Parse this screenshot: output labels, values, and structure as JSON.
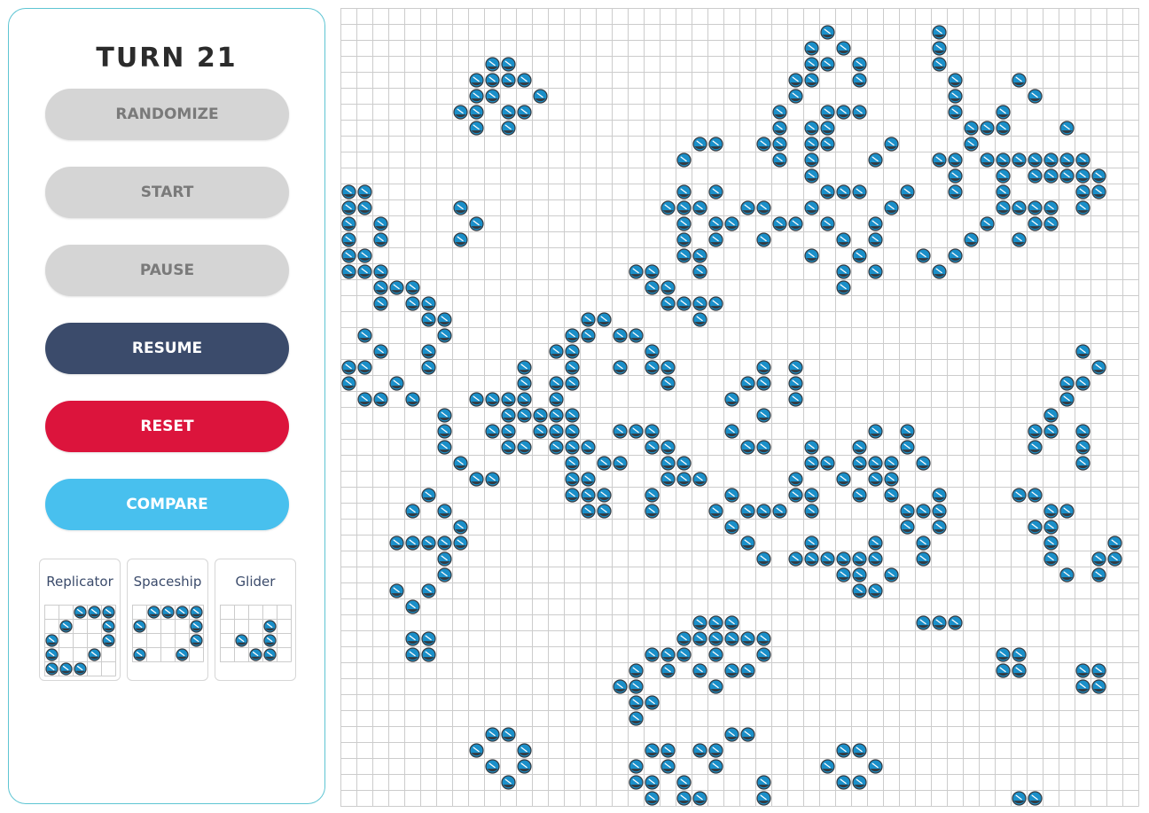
{
  "turn_label": "TURN 21",
  "buttons": {
    "randomize": "RANDOMIZE",
    "start": "START",
    "pause": "PAUSE",
    "resume": "RESUME",
    "reset": "RESET",
    "compare": "COMPARE"
  },
  "colors": {
    "cell_fill": "#1a8fc9",
    "cell_dark": "#34393f",
    "grid_line": "#cccccc",
    "resume": "#3b4b6b",
    "reset": "#dc143c",
    "compare": "#48c0ee",
    "disabled": "#d5d5d5"
  },
  "board": {
    "cols": 50,
    "rows": 50,
    "live_cells": [
      [
        1,
        30
      ],
      [
        1,
        37
      ],
      [
        2,
        29
      ],
      [
        2,
        31
      ],
      [
        2,
        37
      ],
      [
        3,
        9
      ],
      [
        3,
        10
      ],
      [
        3,
        29
      ],
      [
        3,
        30
      ],
      [
        3,
        32
      ],
      [
        3,
        37
      ],
      [
        4,
        8
      ],
      [
        4,
        9
      ],
      [
        4,
        10
      ],
      [
        4,
        11
      ],
      [
        4,
        28
      ],
      [
        4,
        29
      ],
      [
        4,
        32
      ],
      [
        4,
        38
      ],
      [
        4,
        42
      ],
      [
        5,
        8
      ],
      [
        5,
        9
      ],
      [
        5,
        12
      ],
      [
        5,
        28
      ],
      [
        5,
        38
      ],
      [
        5,
        43
      ],
      [
        6,
        7
      ],
      [
        6,
        8
      ],
      [
        6,
        10
      ],
      [
        6,
        11
      ],
      [
        6,
        27
      ],
      [
        6,
        30
      ],
      [
        6,
        31
      ],
      [
        6,
        32
      ],
      [
        6,
        38
      ],
      [
        6,
        41
      ],
      [
        7,
        8
      ],
      [
        7,
        10
      ],
      [
        7,
        27
      ],
      [
        7,
        29
      ],
      [
        7,
        30
      ],
      [
        7,
        39
      ],
      [
        7,
        40
      ],
      [
        7,
        41
      ],
      [
        7,
        45
      ],
      [
        8,
        22
      ],
      [
        8,
        23
      ],
      [
        8,
        26
      ],
      [
        8,
        27
      ],
      [
        8,
        29
      ],
      [
        8,
        30
      ],
      [
        8,
        34
      ],
      [
        8,
        39
      ],
      [
        9,
        21
      ],
      [
        9,
        27
      ],
      [
        9,
        29
      ],
      [
        9,
        33
      ],
      [
        9,
        37
      ],
      [
        9,
        38
      ],
      [
        9,
        40
      ],
      [
        9,
        41
      ],
      [
        9,
        42
      ],
      [
        9,
        43
      ],
      [
        9,
        44
      ],
      [
        9,
        45
      ],
      [
        9,
        46
      ],
      [
        10,
        29
      ],
      [
        10,
        38
      ],
      [
        10,
        41
      ],
      [
        10,
        43
      ],
      [
        10,
        44
      ],
      [
        10,
        45
      ],
      [
        10,
        46
      ],
      [
        10,
        47
      ],
      [
        11,
        0
      ],
      [
        11,
        1
      ],
      [
        11,
        21
      ],
      [
        11,
        23
      ],
      [
        11,
        30
      ],
      [
        11,
        31
      ],
      [
        11,
        32
      ],
      [
        11,
        35
      ],
      [
        11,
        38
      ],
      [
        11,
        41
      ],
      [
        11,
        46
      ],
      [
        11,
        47
      ],
      [
        12,
        0
      ],
      [
        12,
        1
      ],
      [
        12,
        7
      ],
      [
        12,
        20
      ],
      [
        12,
        21
      ],
      [
        12,
        22
      ],
      [
        12,
        25
      ],
      [
        12,
        26
      ],
      [
        12,
        29
      ],
      [
        12,
        34
      ],
      [
        12,
        41
      ],
      [
        12,
        42
      ],
      [
        12,
        43
      ],
      [
        12,
        44
      ],
      [
        12,
        46
      ],
      [
        13,
        0
      ],
      [
        13,
        2
      ],
      [
        13,
        8
      ],
      [
        13,
        21
      ],
      [
        13,
        23
      ],
      [
        13,
        24
      ],
      [
        13,
        27
      ],
      [
        13,
        28
      ],
      [
        13,
        30
      ],
      [
        13,
        33
      ],
      [
        13,
        40
      ],
      [
        13,
        43
      ],
      [
        13,
        44
      ],
      [
        14,
        0
      ],
      [
        14,
        2
      ],
      [
        14,
        7
      ],
      [
        14,
        21
      ],
      [
        14,
        23
      ],
      [
        14,
        26
      ],
      [
        14,
        31
      ],
      [
        14,
        33
      ],
      [
        14,
        39
      ],
      [
        14,
        42
      ],
      [
        15,
        0
      ],
      [
        15,
        1
      ],
      [
        15,
        21
      ],
      [
        15,
        22
      ],
      [
        15,
        29
      ],
      [
        15,
        32
      ],
      [
        15,
        36
      ],
      [
        15,
        38
      ],
      [
        16,
        0
      ],
      [
        16,
        1
      ],
      [
        16,
        2
      ],
      [
        16,
        18
      ],
      [
        16,
        19
      ],
      [
        16,
        22
      ],
      [
        16,
        31
      ],
      [
        16,
        33
      ],
      [
        16,
        37
      ],
      [
        17,
        2
      ],
      [
        17,
        3
      ],
      [
        17,
        4
      ],
      [
        17,
        19
      ],
      [
        17,
        20
      ],
      [
        17,
        31
      ],
      [
        18,
        2
      ],
      [
        18,
        4
      ],
      [
        18,
        5
      ],
      [
        18,
        20
      ],
      [
        18,
        21
      ],
      [
        18,
        22
      ],
      [
        18,
        23
      ],
      [
        19,
        5
      ],
      [
        19,
        6
      ],
      [
        19,
        15
      ],
      [
        19,
        16
      ],
      [
        19,
        22
      ],
      [
        20,
        1
      ],
      [
        20,
        6
      ],
      [
        20,
        14
      ],
      [
        20,
        15
      ],
      [
        20,
        17
      ],
      [
        20,
        18
      ],
      [
        21,
        2
      ],
      [
        21,
        5
      ],
      [
        21,
        13
      ],
      [
        21,
        14
      ],
      [
        21,
        19
      ],
      [
        21,
        46
      ],
      [
        22,
        0
      ],
      [
        22,
        1
      ],
      [
        22,
        5
      ],
      [
        22,
        11
      ],
      [
        22,
        14
      ],
      [
        22,
        17
      ],
      [
        22,
        19
      ],
      [
        22,
        20
      ],
      [
        22,
        26
      ],
      [
        22,
        28
      ],
      [
        22,
        47
      ],
      [
        23,
        0
      ],
      [
        23,
        3
      ],
      [
        23,
        11
      ],
      [
        23,
        13
      ],
      [
        23,
        14
      ],
      [
        23,
        20
      ],
      [
        23,
        25
      ],
      [
        23,
        26
      ],
      [
        23,
        28
      ],
      [
        23,
        45
      ],
      [
        23,
        46
      ],
      [
        24,
        1
      ],
      [
        24,
        2
      ],
      [
        24,
        4
      ],
      [
        24,
        8
      ],
      [
        24,
        9
      ],
      [
        24,
        10
      ],
      [
        24,
        11
      ],
      [
        24,
        13
      ],
      [
        24,
        24
      ],
      [
        24,
        28
      ],
      [
        24,
        45
      ],
      [
        25,
        6
      ],
      [
        25,
        10
      ],
      [
        25,
        11
      ],
      [
        25,
        12
      ],
      [
        25,
        13
      ],
      [
        25,
        14
      ],
      [
        25,
        26
      ],
      [
        25,
        44
      ],
      [
        26,
        6
      ],
      [
        26,
        9
      ],
      [
        26,
        10
      ],
      [
        26,
        12
      ],
      [
        26,
        13
      ],
      [
        26,
        14
      ],
      [
        26,
        17
      ],
      [
        26,
        18
      ],
      [
        26,
        19
      ],
      [
        26,
        24
      ],
      [
        26,
        33
      ],
      [
        26,
        35
      ],
      [
        26,
        43
      ],
      [
        26,
        44
      ],
      [
        26,
        46
      ],
      [
        27,
        6
      ],
      [
        27,
        10
      ],
      [
        27,
        11
      ],
      [
        27,
        13
      ],
      [
        27,
        14
      ],
      [
        27,
        15
      ],
      [
        27,
        19
      ],
      [
        27,
        20
      ],
      [
        27,
        25
      ],
      [
        27,
        26
      ],
      [
        27,
        29
      ],
      [
        27,
        32
      ],
      [
        27,
        35
      ],
      [
        27,
        43
      ],
      [
        27,
        46
      ],
      [
        28,
        7
      ],
      [
        28,
        14
      ],
      [
        28,
        16
      ],
      [
        28,
        17
      ],
      [
        28,
        20
      ],
      [
        28,
        21
      ],
      [
        28,
        29
      ],
      [
        28,
        30
      ],
      [
        28,
        32
      ],
      [
        28,
        33
      ],
      [
        28,
        34
      ],
      [
        28,
        36
      ],
      [
        28,
        46
      ],
      [
        29,
        8
      ],
      [
        29,
        9
      ],
      [
        29,
        14
      ],
      [
        29,
        15
      ],
      [
        29,
        20
      ],
      [
        29,
        21
      ],
      [
        29,
        22
      ],
      [
        29,
        28
      ],
      [
        29,
        31
      ],
      [
        29,
        33
      ],
      [
        29,
        34
      ],
      [
        30,
        5
      ],
      [
        30,
        14
      ],
      [
        30,
        15
      ],
      [
        30,
        16
      ],
      [
        30,
        19
      ],
      [
        30,
        24
      ],
      [
        30,
        28
      ],
      [
        30,
        29
      ],
      [
        30,
        32
      ],
      [
        30,
        34
      ],
      [
        30,
        37
      ],
      [
        30,
        42
      ],
      [
        30,
        43
      ],
      [
        31,
        4
      ],
      [
        31,
        6
      ],
      [
        31,
        15
      ],
      [
        31,
        16
      ],
      [
        31,
        19
      ],
      [
        31,
        23
      ],
      [
        31,
        25
      ],
      [
        31,
        26
      ],
      [
        31,
        27
      ],
      [
        31,
        29
      ],
      [
        31,
        35
      ],
      [
        31,
        36
      ],
      [
        31,
        37
      ],
      [
        31,
        44
      ],
      [
        31,
        45
      ],
      [
        32,
        7
      ],
      [
        32,
        24
      ],
      [
        32,
        35
      ],
      [
        32,
        37
      ],
      [
        32,
        43
      ],
      [
        32,
        44
      ],
      [
        33,
        3
      ],
      [
        33,
        4
      ],
      [
        33,
        5
      ],
      [
        33,
        6
      ],
      [
        33,
        7
      ],
      [
        33,
        25
      ],
      [
        33,
        29
      ],
      [
        33,
        33
      ],
      [
        33,
        36
      ],
      [
        33,
        44
      ],
      [
        33,
        48
      ],
      [
        34,
        6
      ],
      [
        34,
        26
      ],
      [
        34,
        28
      ],
      [
        34,
        29
      ],
      [
        34,
        30
      ],
      [
        34,
        31
      ],
      [
        34,
        32
      ],
      [
        34,
        33
      ],
      [
        34,
        36
      ],
      [
        34,
        44
      ],
      [
        34,
        47
      ],
      [
        34,
        48
      ],
      [
        35,
        6
      ],
      [
        35,
        31
      ],
      [
        35,
        32
      ],
      [
        35,
        34
      ],
      [
        35,
        45
      ],
      [
        35,
        47
      ],
      [
        36,
        3
      ],
      [
        36,
        5
      ],
      [
        36,
        32
      ],
      [
        36,
        33
      ],
      [
        37,
        4
      ],
      [
        38,
        22
      ],
      [
        38,
        23
      ],
      [
        38,
        24
      ],
      [
        38,
        36
      ],
      [
        38,
        37
      ],
      [
        38,
        38
      ],
      [
        39,
        4
      ],
      [
        39,
        5
      ],
      [
        39,
        21
      ],
      [
        39,
        22
      ],
      [
        39,
        23
      ],
      [
        39,
        24
      ],
      [
        39,
        25
      ],
      [
        39,
        26
      ],
      [
        40,
        4
      ],
      [
        40,
        5
      ],
      [
        40,
        19
      ],
      [
        40,
        20
      ],
      [
        40,
        21
      ],
      [
        40,
        23
      ],
      [
        40,
        26
      ],
      [
        40,
        41
      ],
      [
        40,
        42
      ],
      [
        41,
        18
      ],
      [
        41,
        20
      ],
      [
        41,
        22
      ],
      [
        41,
        24
      ],
      [
        41,
        25
      ],
      [
        41,
        41
      ],
      [
        41,
        42
      ],
      [
        41,
        46
      ],
      [
        41,
        47
      ],
      [
        42,
        17
      ],
      [
        42,
        18
      ],
      [
        42,
        23
      ],
      [
        42,
        46
      ],
      [
        42,
        47
      ],
      [
        43,
        18
      ],
      [
        43,
        19
      ],
      [
        44,
        18
      ],
      [
        45,
        9
      ],
      [
        45,
        10
      ],
      [
        45,
        24
      ],
      [
        45,
        25
      ],
      [
        46,
        8
      ],
      [
        46,
        11
      ],
      [
        46,
        19
      ],
      [
        46,
        20
      ],
      [
        46,
        22
      ],
      [
        46,
        23
      ],
      [
        46,
        31
      ],
      [
        46,
        32
      ],
      [
        47,
        9
      ],
      [
        47,
        11
      ],
      [
        47,
        18
      ],
      [
        47,
        20
      ],
      [
        47,
        23
      ],
      [
        47,
        30
      ],
      [
        47,
        33
      ],
      [
        48,
        10
      ],
      [
        48,
        18
      ],
      [
        48,
        19
      ],
      [
        48,
        21
      ],
      [
        48,
        26
      ],
      [
        48,
        31
      ],
      [
        48,
        32
      ],
      [
        49,
        19
      ],
      [
        49,
        21
      ],
      [
        49,
        22
      ],
      [
        49,
        26
      ],
      [
        49,
        42
      ],
      [
        49,
        43
      ],
      [
        50,
        42
      ],
      [
        50,
        43
      ]
    ]
  },
  "patterns": [
    {
      "name": "Replicator",
      "cols": 5,
      "rows": 5,
      "cells": [
        [
          0,
          2
        ],
        [
          0,
          3
        ],
        [
          0,
          4
        ],
        [
          1,
          1
        ],
        [
          1,
          4
        ],
        [
          2,
          0
        ],
        [
          2,
          4
        ],
        [
          3,
          0
        ],
        [
          3,
          3
        ],
        [
          4,
          0
        ],
        [
          4,
          1
        ],
        [
          4,
          2
        ]
      ]
    },
    {
      "name": "Spaceship",
      "cols": 5,
      "rows": 4,
      "cells": [
        [
          0,
          1
        ],
        [
          0,
          2
        ],
        [
          0,
          3
        ],
        [
          0,
          4
        ],
        [
          1,
          0
        ],
        [
          1,
          4
        ],
        [
          2,
          4
        ],
        [
          3,
          0
        ],
        [
          3,
          3
        ]
      ]
    },
    {
      "name": "Glider",
      "cols": 5,
      "rows": 4,
      "cells": [
        [
          1,
          3
        ],
        [
          2,
          1
        ],
        [
          2,
          3
        ],
        [
          3,
          2
        ],
        [
          3,
          3
        ]
      ]
    }
  ]
}
